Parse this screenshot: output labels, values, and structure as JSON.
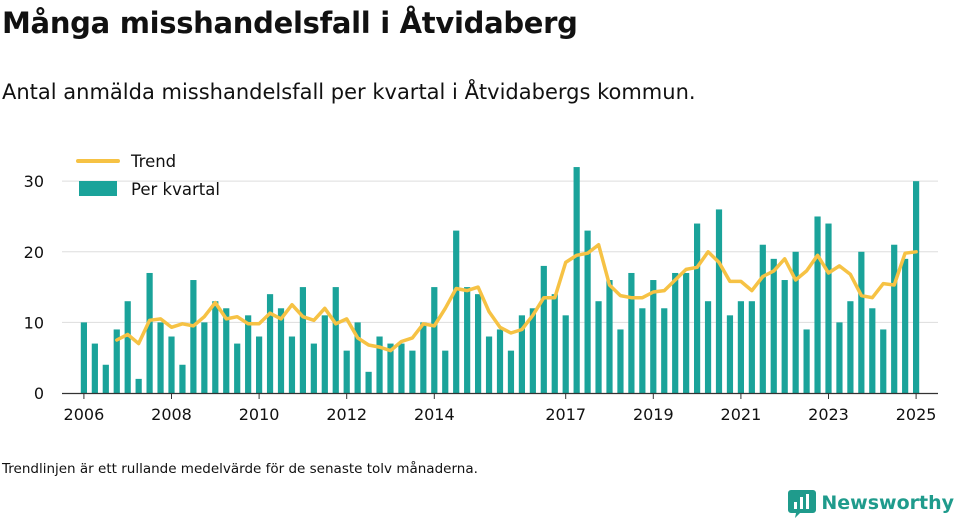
{
  "header": {
    "title": "Många misshandelsfall i Åtvidaberg",
    "subtitle": "Antal anmälda misshandelsfall per kvartal i Åtvidabergs kommun."
  },
  "footer": {
    "note": "Trendlinjen är ett rullande medelvärde för de senaste tolv månaderna.",
    "brand": "Newsworthy"
  },
  "colors": {
    "bar": "#1aa39a",
    "trend": "#f6c244",
    "grid": "#dddddd",
    "brand": "#1f9b8c"
  },
  "chart_data": {
    "type": "bar",
    "title": "",
    "xlabel": "",
    "ylabel": "",
    "ylim": [
      0,
      33
    ],
    "yticks": [
      0,
      10,
      20,
      30
    ],
    "xticks": [
      "2006",
      "2008",
      "2010",
      "2012",
      "2014",
      "2017",
      "2019",
      "2021",
      "2023",
      "2025"
    ],
    "xtick_positions": [
      2006.0,
      2008.0,
      2010.0,
      2012.0,
      2014.0,
      2017.0,
      2019.0,
      2021.0,
      2023.0,
      2025.0
    ],
    "grid": true,
    "legend": {
      "placement": "top-left",
      "entries": [
        "Trend",
        "Per kvartal"
      ]
    },
    "x": [
      2006.0,
      2006.25,
      2006.5,
      2006.75,
      2007.0,
      2007.25,
      2007.5,
      2007.75,
      2008.0,
      2008.25,
      2008.5,
      2008.75,
      2009.0,
      2009.25,
      2009.5,
      2009.75,
      2010.0,
      2010.25,
      2010.5,
      2010.75,
      2011.0,
      2011.25,
      2011.5,
      2011.75,
      2012.0,
      2012.25,
      2012.5,
      2012.75,
      2013.0,
      2013.25,
      2013.5,
      2013.75,
      2014.0,
      2014.25,
      2014.5,
      2014.75,
      2015.0,
      2015.25,
      2015.5,
      2015.75,
      2016.0,
      2016.25,
      2016.5,
      2016.75,
      2017.0,
      2017.25,
      2017.5,
      2017.75,
      2018.0,
      2018.25,
      2018.5,
      2018.75,
      2019.0,
      2019.25,
      2019.5,
      2019.75,
      2020.0,
      2020.25,
      2020.5,
      2020.75,
      2021.0,
      2021.25,
      2021.5,
      2021.75,
      2022.0,
      2022.25,
      2022.5,
      2022.75,
      2023.0,
      2023.25,
      2023.5,
      2023.75,
      2024.0,
      2024.25,
      2024.5,
      2024.75,
      2025.0
    ],
    "series": [
      {
        "name": "Per kvartal",
        "type": "bar",
        "values": [
          10,
          7,
          4,
          9,
          13,
          2,
          17,
          10,
          8,
          4,
          16,
          10,
          13,
          12,
          7,
          11,
          8,
          14,
          12,
          8,
          15,
          7,
          11,
          15,
          6,
          10,
          3,
          8,
          7,
          7,
          6,
          10,
          15,
          6,
          23,
          15,
          14,
          8,
          9,
          6,
          11,
          12,
          18,
          14,
          11,
          32,
          23,
          13,
          16,
          9,
          17,
          12,
          16,
          12,
          17,
          17,
          24,
          13,
          26,
          11,
          13,
          13,
          21,
          19,
          16,
          20,
          9,
          25,
          24,
          10,
          13,
          20,
          12,
          9,
          21,
          19,
          30
        ]
      },
      {
        "name": "Trend",
        "type": "line",
        "x": [
          2006.75,
          2007.0,
          2007.25,
          2007.5,
          2007.75,
          2008.0,
          2008.25,
          2008.5,
          2008.75,
          2009.0,
          2009.25,
          2009.5,
          2009.75,
          2010.0,
          2010.25,
          2010.5,
          2010.75,
          2011.0,
          2011.25,
          2011.5,
          2011.75,
          2012.0,
          2012.25,
          2012.5,
          2012.75,
          2013.0,
          2013.25,
          2013.5,
          2013.75,
          2014.0,
          2014.25,
          2014.5,
          2014.75,
          2015.0,
          2015.25,
          2015.5,
          2015.75,
          2016.0,
          2016.25,
          2016.5,
          2016.75,
          2017.0,
          2017.25,
          2017.5,
          2017.75,
          2018.0,
          2018.25,
          2018.5,
          2018.75,
          2019.0,
          2019.25,
          2019.5,
          2019.75,
          2020.0,
          2020.25,
          2020.5,
          2020.75,
          2021.0,
          2021.25,
          2021.5,
          2021.75,
          2022.0,
          2022.25,
          2022.5,
          2022.75,
          2023.0,
          2023.25,
          2023.5,
          2023.75,
          2024.0,
          2024.25,
          2024.5,
          2024.75,
          2025.0
        ],
        "values": [
          7.5,
          8.3,
          7.0,
          10.3,
          10.5,
          9.3,
          9.8,
          9.5,
          10.8,
          12.8,
          10.5,
          10.8,
          9.8,
          9.8,
          11.3,
          10.5,
          12.5,
          10.8,
          10.3,
          12.0,
          9.8,
          10.5,
          7.8,
          6.8,
          6.5,
          6.0,
          7.3,
          7.8,
          9.8,
          9.5,
          12.0,
          14.8,
          14.5,
          15.0,
          11.5,
          9.3,
          8.5,
          9.0,
          11.0,
          13.5,
          13.5,
          18.5,
          19.5,
          19.8,
          21.0,
          15.3,
          13.8,
          13.5,
          13.5,
          14.3,
          14.5,
          16.0,
          17.5,
          17.8,
          20.0,
          18.5,
          15.8,
          15.8,
          14.5,
          16.5,
          17.3,
          19.0,
          16.0,
          17.3,
          19.5,
          17.0,
          18.0,
          16.8,
          13.8,
          13.5,
          15.5,
          15.3,
          19.8,
          20.0
        ]
      }
    ]
  }
}
